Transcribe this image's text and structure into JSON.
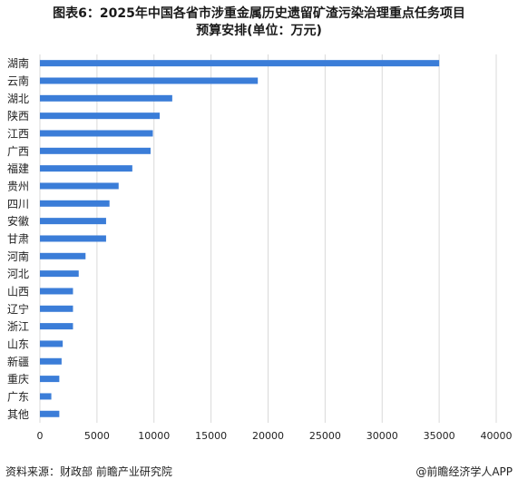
{
  "title_line1": "图表6：2025年中国各省市涉重金属历史遗留矿渣污染治理重点任务项目",
  "title_line2": "预算安排(单位：万元)",
  "source_text": "资料来源：财政部 前瞻产业研究院",
  "brand_text": "@前瞻经济学人APP",
  "colors": {
    "bar": "#3b7dd8",
    "grid": "#d9d9d9",
    "text": "#222222"
  },
  "chart_data": {
    "type": "bar",
    "orientation": "horizontal",
    "categories": [
      "湖南",
      "云南",
      "湖北",
      "陕西",
      "江西",
      "广西",
      "福建",
      "贵州",
      "四川",
      "安徽",
      "甘肃",
      "河南",
      "河北",
      "山西",
      "辽宁",
      "浙江",
      "山东",
      "新疆",
      "重庆",
      "广东",
      "其他"
    ],
    "values": [
      35000,
      19100,
      11600,
      10500,
      9900,
      9700,
      8100,
      6900,
      6100,
      5800,
      5800,
      4000,
      3400,
      2900,
      2900,
      2900,
      2000,
      1900,
      1700,
      1000,
      1700
    ],
    "xticks": [
      "0",
      "5000",
      "10000",
      "15000",
      "20000",
      "25000",
      "30000",
      "35000",
      "40000"
    ],
    "xlim": [
      0,
      40000
    ],
    "grid": "vertical",
    "title": "",
    "xlabel": "",
    "ylabel": ""
  }
}
